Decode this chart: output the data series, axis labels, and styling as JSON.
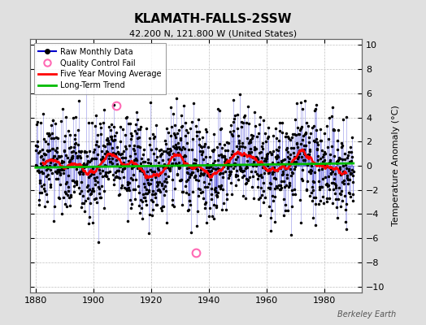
{
  "title": "KLAMATH-FALLS-2SSW",
  "subtitle": "42.200 N, 121.800 W (United States)",
  "ylabel": "Temperature Anomaly (°C)",
  "xlabel_ticks": [
    1880,
    1900,
    1920,
    1940,
    1960,
    1980
  ],
  "ylim": [
    -10.5,
    10.5
  ],
  "xlim": [
    1878,
    1993
  ],
  "yticks": [
    -10,
    -8,
    -6,
    -4,
    -2,
    0,
    2,
    4,
    6,
    8,
    10
  ],
  "bg_color": "#e0e0e0",
  "plot_bg_color": "#ffffff",
  "grid_color": "#c0c0c0",
  "line_color": "#0000cc",
  "dot_color": "#000000",
  "ma_color": "#ff0000",
  "trend_color": "#00bb00",
  "qc_color": "#ff69b4",
  "watermark": "Berkeley Earth",
  "seed": 42,
  "n_points": 1320,
  "start_year": 1880.0,
  "end_year": 1990.0,
  "qc_fail_points": [
    [
      1908.0,
      5.0
    ],
    [
      1935.5,
      -7.2
    ]
  ]
}
